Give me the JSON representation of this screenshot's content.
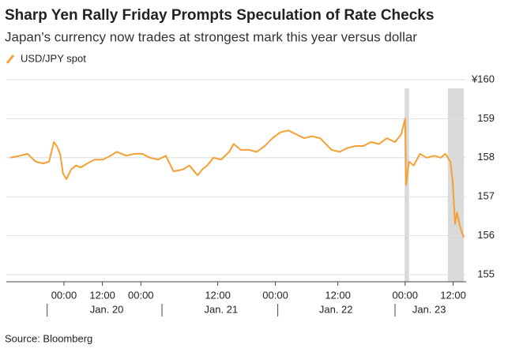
{
  "chart_data": {
    "type": "line",
    "title": "Sharp Yen Rally Friday Prompts Speculation of Rate Checks",
    "subtitle": "Japan's currency now trades at strongest mark this year versus dollar",
    "source": "Source: Bloomberg",
    "x": [
      0.8,
      2.8,
      4.4,
      6.1,
      7.7,
      8.9,
      9.9,
      10.5,
      11.2,
      11.8,
      12.5,
      13.5,
      14.5,
      15.5,
      16.8,
      18.4,
      20.1,
      21.7,
      23.0,
      25.0,
      26.6,
      28.3,
      29.9,
      31.6,
      33.2,
      34.8,
      36.8,
      38.1,
      39.8,
      40.8,
      41.8,
      43.1,
      44.7,
      46.4,
      47.3,
      48.8,
      50.5,
      52.1,
      53.8,
      55.4,
      57.0,
      58.7,
      60.3,
      62.0,
      63.6,
      65.3,
      66.9,
      67.7,
      69.4,
      71.0,
      72.7,
      74.3,
      75.9,
      77.6,
      79.2,
      80.9,
      82.2,
      83.0,
      83.2,
      83.8,
      84.8,
      86.1,
      87.5,
      89.1,
      90.4,
      91.4,
      92.4,
      92.9,
      93.4,
      93.8,
      94.4,
      95.2
    ],
    "series": [
      {
        "name": "USD/JPY spot",
        "color": "#f5a033",
        "values": [
          158.0,
          158.05,
          158.1,
          157.9,
          157.85,
          157.9,
          158.4,
          158.3,
          158.1,
          157.6,
          157.45,
          157.7,
          157.8,
          157.75,
          157.85,
          157.95,
          157.95,
          158.05,
          158.15,
          158.05,
          158.1,
          158.1,
          158.0,
          157.95,
          158.05,
          157.65,
          157.7,
          157.8,
          157.55,
          157.7,
          157.8,
          158.0,
          157.95,
          158.15,
          158.35,
          158.2,
          158.2,
          158.15,
          158.3,
          158.5,
          158.65,
          158.7,
          158.6,
          158.5,
          158.55,
          158.5,
          158.3,
          158.2,
          158.15,
          158.25,
          158.3,
          158.3,
          158.4,
          158.35,
          158.5,
          158.4,
          158.6,
          159.0,
          157.3,
          157.9,
          157.8,
          158.1,
          158.0,
          158.05,
          158.0,
          158.1,
          157.9,
          157.4,
          156.3,
          156.6,
          156.25,
          155.95
        ]
      }
    ],
    "xlim": [
      0,
      95.7
    ],
    "xticks": [
      {
        "value": 12,
        "label": "00:00"
      },
      {
        "value": 20,
        "label": "12:00"
      },
      {
        "value": 28,
        "label": "00:00"
      },
      {
        "value": 44,
        "label": "12:00"
      },
      {
        "value": 56,
        "label": "00:00"
      },
      {
        "value": 69,
        "label": "12:00"
      },
      {
        "value": 83,
        "label": "00:00"
      },
      {
        "value": 93,
        "label": "12:00"
      }
    ],
    "date_labels": [
      {
        "value": 20.9,
        "label": "Jan. 20"
      },
      {
        "value": 44.7,
        "label": "Jan. 21"
      },
      {
        "value": 68.6,
        "label": "Jan. 22"
      },
      {
        "value": 88,
        "label": "Jan. 23"
      }
    ],
    "day_boundaries": [
      8.5,
      32.4,
      56.5,
      80.9
    ],
    "shaded_ranges": [
      [
        82.9,
        83.8
      ],
      [
        91.9,
        95.2
      ]
    ],
    "shade_color": "#d9d9d9",
    "ylim": [
      154.82,
      160.1
    ],
    "yticks": [
      155,
      156,
      157,
      158,
      159,
      {
        "value": 160,
        "label": "¥160"
      }
    ],
    "grid": true
  }
}
